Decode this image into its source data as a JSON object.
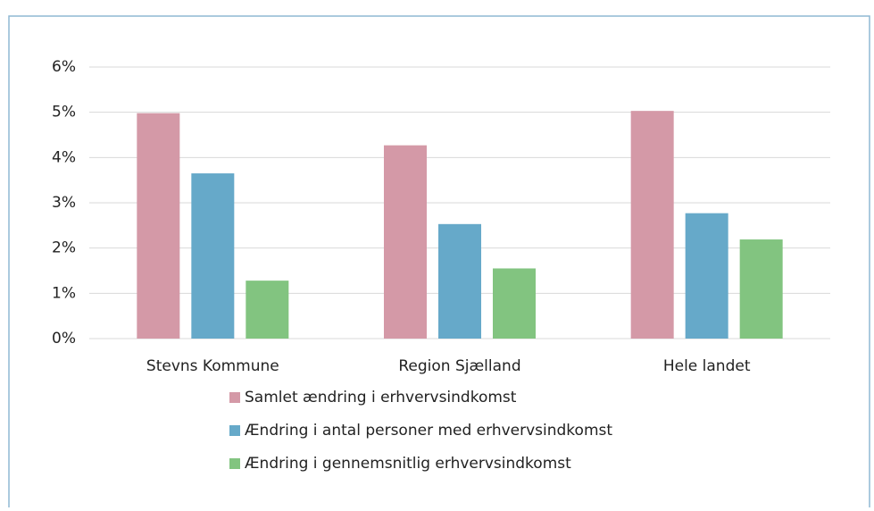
{
  "chart_data": {
    "type": "bar",
    "categories": [
      "Stevns Kommune",
      "Region Sjælland",
      "Hele landet"
    ],
    "series": [
      {
        "name": "Samlet ændring i erhvervsindkomst",
        "color": "#d499a7",
        "values": [
          4.98,
          4.27,
          5.03
        ]
      },
      {
        "name": "Ændring i antal personer med erhvervsindkomst",
        "color": "#66a9c9",
        "values": [
          3.65,
          2.53,
          2.77
        ]
      },
      {
        "name": "Ændring i gennemsnitlig erhvervsindkomst",
        "color": "#82c480",
        "values": [
          1.28,
          1.55,
          2.19
        ]
      }
    ],
    "ylim": [
      0,
      6
    ],
    "yticks": [
      {
        "value": 0,
        "label": "0%"
      },
      {
        "value": 1,
        "label": "1%"
      },
      {
        "value": 2,
        "label": "2%"
      },
      {
        "value": 3,
        "label": "3%"
      },
      {
        "value": 4,
        "label": "4%"
      },
      {
        "value": 5,
        "label": "5%"
      },
      {
        "value": 6,
        "label": "6%"
      }
    ],
    "grid": true,
    "legend": "bottom"
  }
}
